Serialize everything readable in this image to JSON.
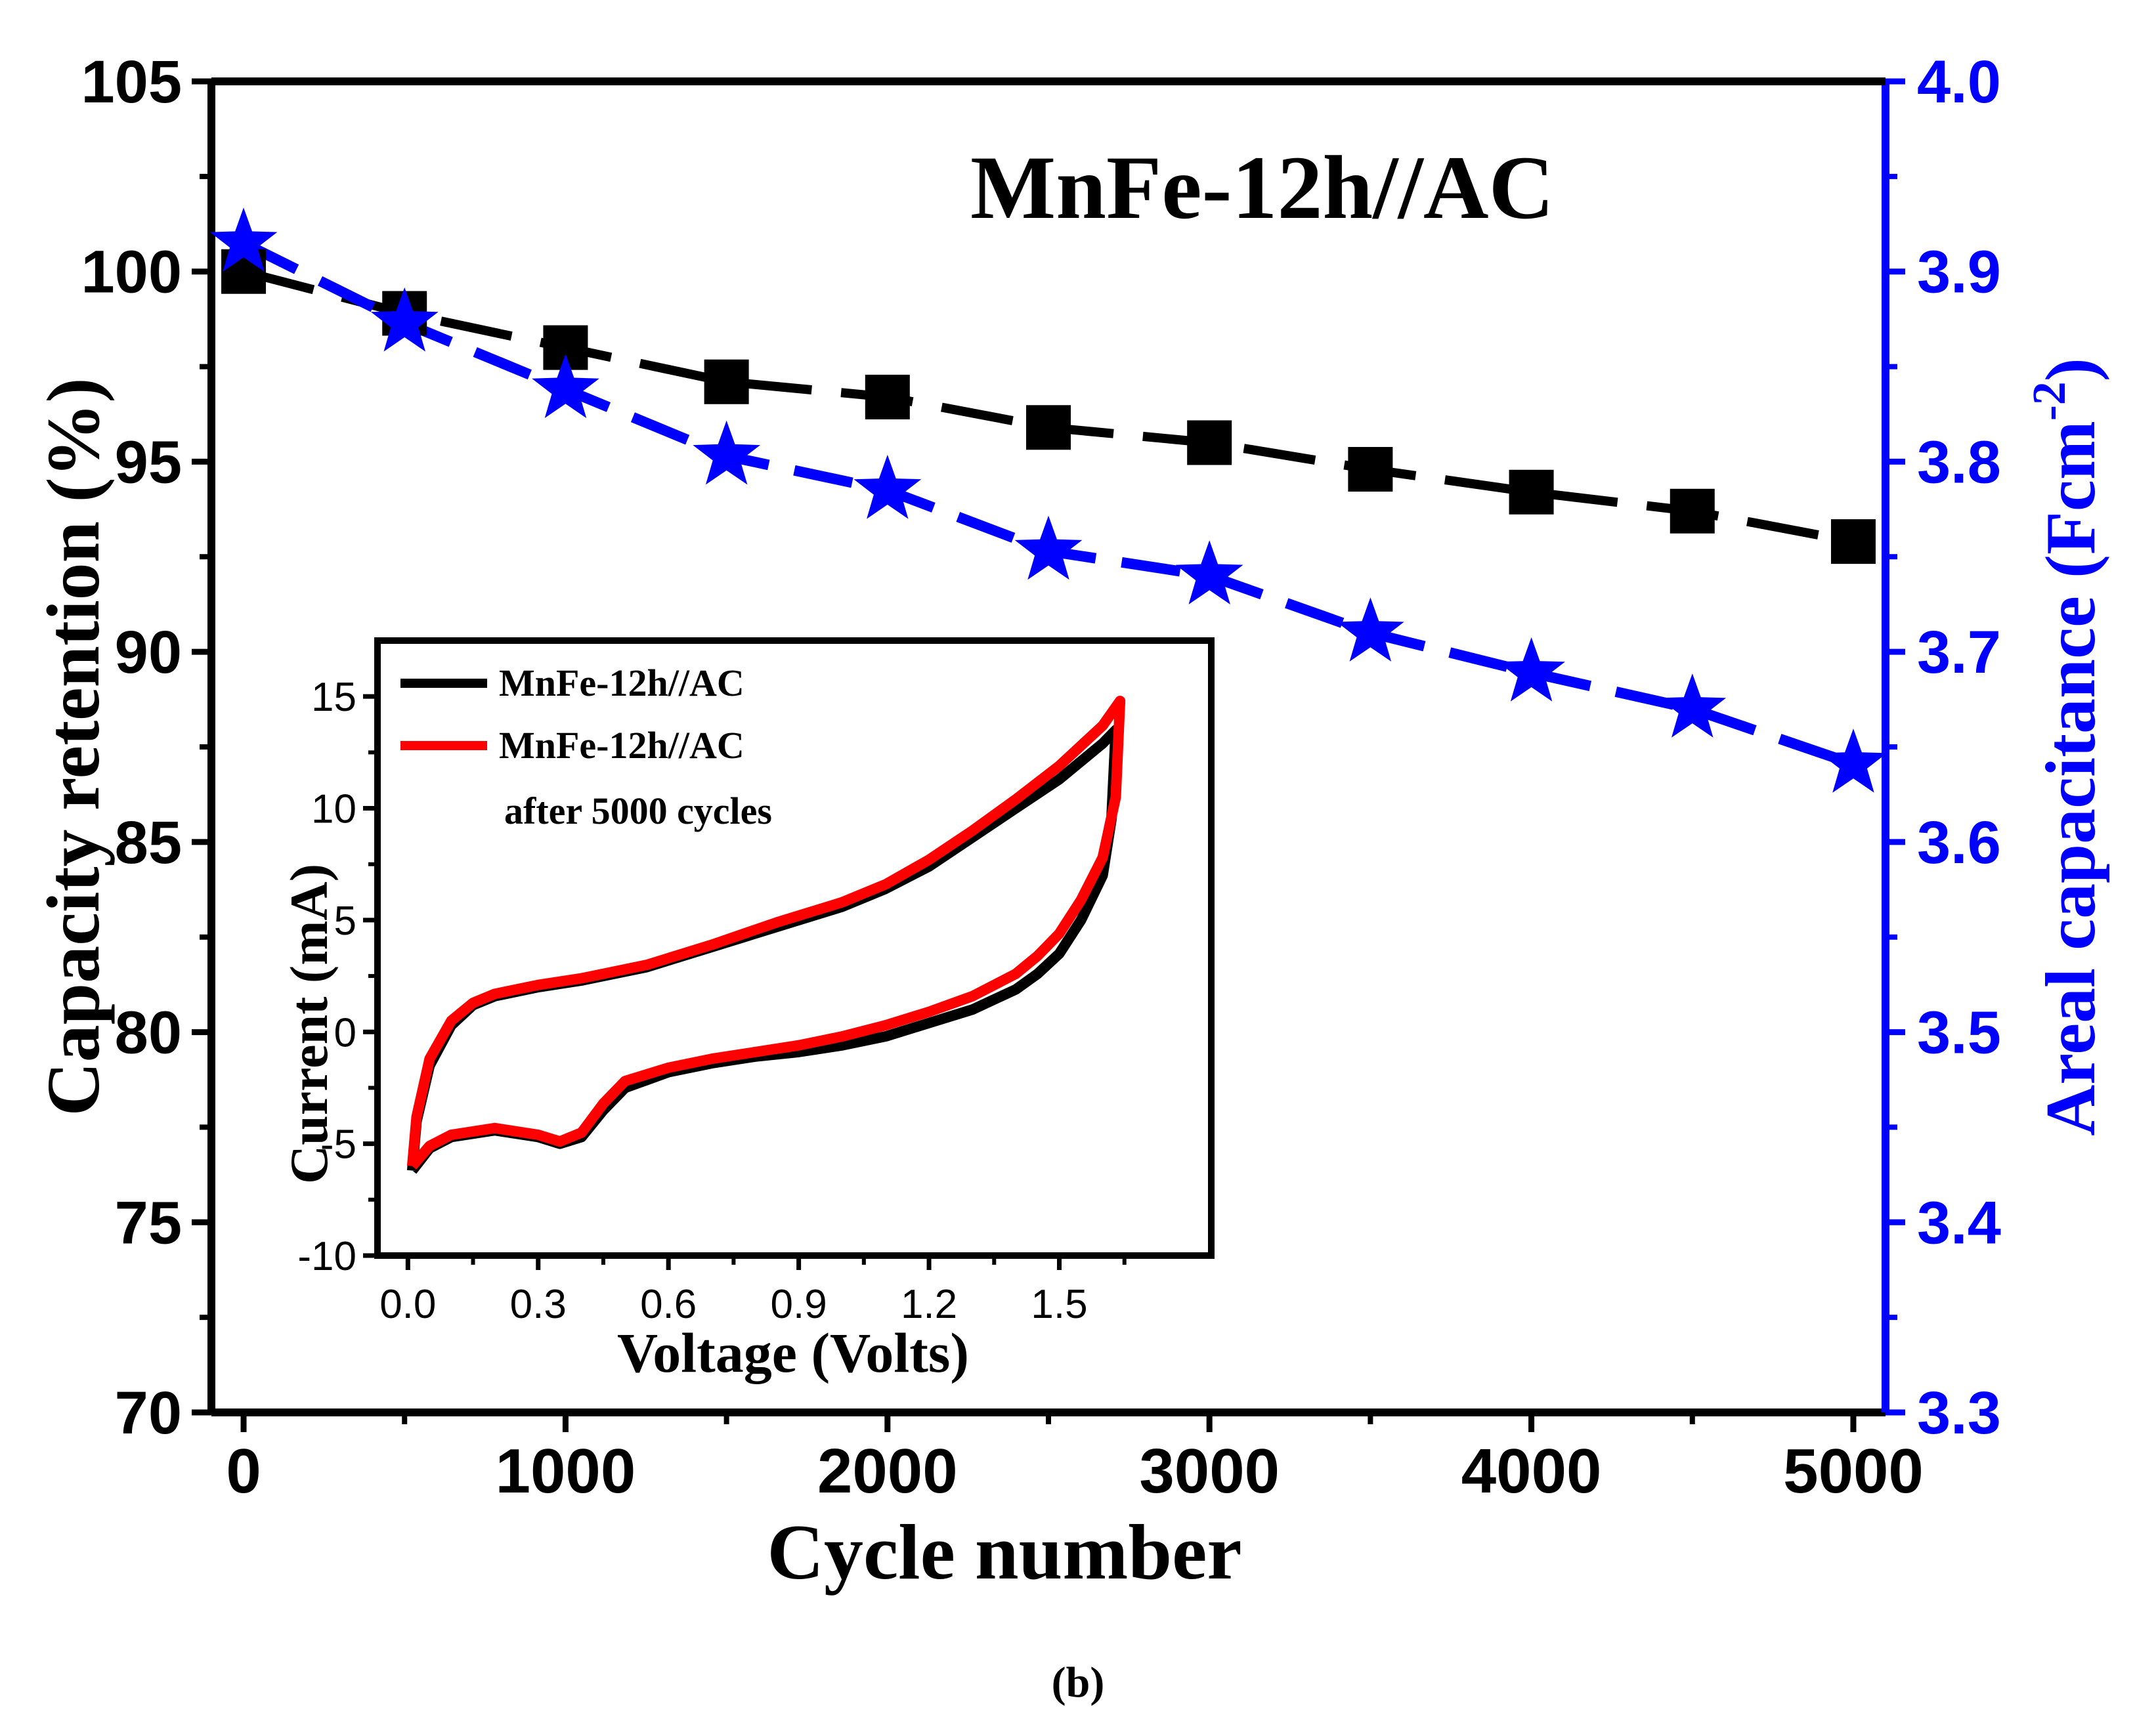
{
  "chart_data": [
    {
      "type": "line",
      "title": "MnFe-12h//AC",
      "panel_label": "(b)",
      "xlabel": "Cycle number",
      "ylabel": "Capacity retention (%)",
      "ylabel_right": "Areal capacitance (Fcm",
      "ylabel_right_exp": "-2",
      "ylabel_right_close": ")",
      "xlim": [
        -100,
        5100
      ],
      "ylim": [
        70,
        105
      ],
      "y2lim": [
        3.3,
        4.0
      ],
      "xticks": [
        0,
        1000,
        2000,
        3000,
        4000,
        5000
      ],
      "xtick_labels": [
        "0",
        "1000",
        "2000",
        "3000",
        "4000",
        "5000"
      ],
      "yticks": [
        70,
        75,
        80,
        85,
        90,
        95,
        100,
        105
      ],
      "ytick_labels": [
        "70",
        "75",
        "80",
        "85",
        "90",
        "95",
        "100",
        "105"
      ],
      "y2ticks": [
        3.3,
        3.4,
        3.5,
        3.6,
        3.7,
        3.8,
        3.9,
        4.0
      ],
      "y2tick_labels": [
        "3.3",
        "3.4",
        "3.5",
        "3.6",
        "3.7",
        "3.8",
        "3.9",
        "4.0"
      ],
      "x": [
        0,
        500,
        1000,
        1500,
        2000,
        2500,
        3000,
        3500,
        4000,
        4500,
        5000
      ],
      "series": [
        {
          "name": "Capacity retention",
          "axis": "left",
          "marker": "square",
          "line": "dashed",
          "color": "#000000",
          "values": [
            100,
            98.9,
            98.0,
            97.1,
            96.7,
            95.9,
            95.5,
            94.8,
            94.2,
            93.7,
            92.9
          ]
        },
        {
          "name": "Areal capacitance",
          "axis": "right",
          "marker": "star",
          "line": "dashed",
          "color": "#0000ff",
          "values": [
            3.915,
            3.873,
            3.838,
            3.803,
            3.785,
            3.753,
            3.74,
            3.71,
            3.689,
            3.67,
            3.641
          ]
        }
      ]
    },
    {
      "type": "line",
      "subtype": "cyclic-voltammetry-inset",
      "xlabel": "Voltage (Volts)",
      "ylabel": "Current  (mA)",
      "xlim": [
        -0.07,
        1.85
      ],
      "ylim": [
        -10,
        17.5
      ],
      "xticks": [
        0.0,
        0.3,
        0.6,
        0.9,
        1.2,
        1.5
      ],
      "xtick_labels": [
        "0.0",
        "0.3",
        "0.6",
        "0.9",
        "1.2",
        "1.5"
      ],
      "yticks": [
        -10,
        -5,
        0,
        5,
        10,
        15
      ],
      "ytick_labels": [
        "-10",
        "-5",
        "0",
        "5",
        "10",
        "15"
      ],
      "legend": {
        "position": "top-left",
        "entries": [
          {
            "label": "MnFe-12h//AC",
            "color": "#000000"
          },
          {
            "label": "MnFe-12h//AC",
            "color": "#ff0000",
            "note": "after 5000 cycles"
          }
        ]
      },
      "series": [
        {
          "name": "MnFe-12h//AC",
          "color": "#000000",
          "loop": [
            [
              0.01,
              -6.2
            ],
            [
              0.02,
              -4.0
            ],
            [
              0.05,
              -1.5
            ],
            [
              0.1,
              0.3
            ],
            [
              0.15,
              1.2
            ],
            [
              0.2,
              1.6
            ],
            [
              0.3,
              2.0
            ],
            [
              0.4,
              2.3
            ],
            [
              0.55,
              2.9
            ],
            [
              0.7,
              3.8
            ],
            [
              0.85,
              4.7
            ],
            [
              1.0,
              5.6
            ],
            [
              1.1,
              6.4
            ],
            [
              1.2,
              7.4
            ],
            [
              1.3,
              8.7
            ],
            [
              1.4,
              10.0
            ],
            [
              1.5,
              11.3
            ],
            [
              1.6,
              12.9
            ],
            [
              1.63,
              13.5
            ],
            [
              1.62,
              9.5
            ],
            [
              1.6,
              7.0
            ],
            [
              1.55,
              5.0
            ],
            [
              1.5,
              3.5
            ],
            [
              1.45,
              2.6
            ],
            [
              1.4,
              1.9
            ],
            [
              1.3,
              1.0
            ],
            [
              1.2,
              0.4
            ],
            [
              1.1,
              -0.2
            ],
            [
              1.0,
              -0.6
            ],
            [
              0.9,
              -0.9
            ],
            [
              0.8,
              -1.1
            ],
            [
              0.7,
              -1.4
            ],
            [
              0.6,
              -1.8
            ],
            [
              0.5,
              -2.5
            ],
            [
              0.45,
              -3.5
            ],
            [
              0.4,
              -4.7
            ],
            [
              0.35,
              -5.0
            ],
            [
              0.3,
              -4.7
            ],
            [
              0.2,
              -4.4
            ],
            [
              0.1,
              -4.7
            ],
            [
              0.05,
              -5.2
            ],
            [
              0.01,
              -6.2
            ]
          ]
        },
        {
          "name": "MnFe-12h//AC after 5000 cycles",
          "color": "#ff0000",
          "loop": [
            [
              0.01,
              -6.0
            ],
            [
              0.02,
              -3.8
            ],
            [
              0.05,
              -1.2
            ],
            [
              0.1,
              0.5
            ],
            [
              0.15,
              1.3
            ],
            [
              0.2,
              1.7
            ],
            [
              0.3,
              2.1
            ],
            [
              0.4,
              2.4
            ],
            [
              0.55,
              3.0
            ],
            [
              0.7,
              3.9
            ],
            [
              0.85,
              4.9
            ],
            [
              1.0,
              5.8
            ],
            [
              1.1,
              6.6
            ],
            [
              1.2,
              7.7
            ],
            [
              1.3,
              9.0
            ],
            [
              1.4,
              10.4
            ],
            [
              1.5,
              11.9
            ],
            [
              1.6,
              13.7
            ],
            [
              1.64,
              14.8
            ],
            [
              1.63,
              10.5
            ],
            [
              1.6,
              7.8
            ],
            [
              1.55,
              5.9
            ],
            [
              1.5,
              4.4
            ],
            [
              1.45,
              3.4
            ],
            [
              1.4,
              2.6
            ],
            [
              1.3,
              1.6
            ],
            [
              1.2,
              0.9
            ],
            [
              1.1,
              0.3
            ],
            [
              1.0,
              -0.2
            ],
            [
              0.9,
              -0.6
            ],
            [
              0.8,
              -0.9
            ],
            [
              0.7,
              -1.2
            ],
            [
              0.6,
              -1.6
            ],
            [
              0.5,
              -2.2
            ],
            [
              0.45,
              -3.2
            ],
            [
              0.4,
              -4.5
            ],
            [
              0.35,
              -4.9
            ],
            [
              0.3,
              -4.6
            ],
            [
              0.2,
              -4.3
            ],
            [
              0.1,
              -4.6
            ],
            [
              0.05,
              -5.1
            ],
            [
              0.01,
              -6.0
            ]
          ]
        }
      ]
    }
  ]
}
